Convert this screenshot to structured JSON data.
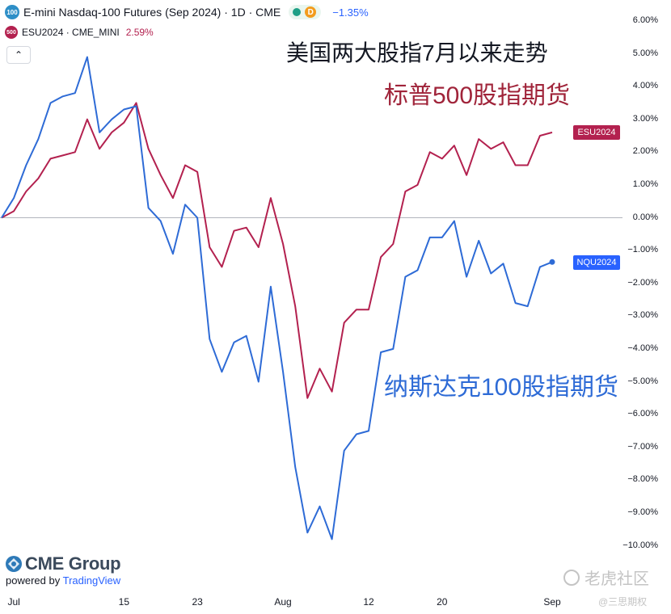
{
  "legend": {
    "nq_symbol_badge": "100",
    "nq_title": "E-mini Nasdaq-100 Futures (Sep 2024) · 1D · CME",
    "d_letter": "D",
    "nq_change": "−1.35%",
    "es_symbol_badge": "500",
    "es_title": "ESU2024 · CME_MINI",
    "es_change": "2.59%",
    "collapse_glyph": "⌃"
  },
  "annotations": {
    "headline": "美国两大股指7月以来走势",
    "es_label": "标普500股指期货",
    "nq_label": "纳斯达克100股指期货"
  },
  "price_tags": {
    "es": "ESU2024",
    "nq": "NQU2024"
  },
  "branding": {
    "cme_logo_text": "CME Group",
    "powered_by": "powered by",
    "tradingview": "TradingView",
    "watermark": "老虎社区",
    "watermark_sub": "@三思期权"
  },
  "colors": {
    "es_line": "#b3214f",
    "nq_line": "#2e6bd6",
    "zero_line": "#b2b5be"
  },
  "chart_data": {
    "type": "line",
    "ylabel_format": "percent",
    "ylim": [
      -10.5,
      6.5
    ],
    "y_ticks": [
      "6.00%",
      "5.00%",
      "4.00%",
      "3.00%",
      "2.00%",
      "1.00%",
      "0.00%",
      "−1.00%",
      "−2.00%",
      "−3.00%",
      "−4.00%",
      "−5.00%",
      "−6.00%",
      "−7.00%",
      "−8.00%",
      "−9.00%",
      "−10.00%"
    ],
    "x_ticks": [
      {
        "label": "Jul",
        "index": 1
      },
      {
        "label": "15",
        "index": 10
      },
      {
        "label": "23",
        "index": 16
      },
      {
        "label": "Aug",
        "index": 23
      },
      {
        "label": "12",
        "index": 30
      },
      {
        "label": "20",
        "index": 36
      },
      {
        "label": "Sep",
        "index": 45
      }
    ],
    "series": [
      {
        "name": "ESU2024",
        "values": [
          0.0,
          0.2,
          0.8,
          1.2,
          1.8,
          1.9,
          2.0,
          3.0,
          2.1,
          2.6,
          2.9,
          3.5,
          2.1,
          1.3,
          0.6,
          1.6,
          1.4,
          -0.9,
          -1.5,
          -0.4,
          -0.3,
          -0.9,
          0.6,
          -0.8,
          -2.7,
          -5.5,
          -4.6,
          -5.3,
          -3.2,
          -2.8,
          -2.8,
          -1.2,
          -0.8,
          0.8,
          1.0,
          2.0,
          1.8,
          2.2,
          1.3,
          2.4,
          2.1,
          2.3,
          1.6,
          1.6,
          2.5,
          2.6
        ]
      },
      {
        "name": "NQU2024",
        "values": [
          0.0,
          0.6,
          1.6,
          2.4,
          3.5,
          3.7,
          3.8,
          4.9,
          2.6,
          3.0,
          3.3,
          3.4,
          0.3,
          -0.1,
          -1.1,
          0.4,
          0.0,
          -3.7,
          -4.7,
          -3.8,
          -3.6,
          -5.0,
          -2.1,
          -4.7,
          -7.6,
          -9.6,
          -8.8,
          -9.8,
          -7.1,
          -6.6,
          -6.5,
          -4.1,
          -4.0,
          -1.8,
          -1.6,
          -0.6,
          -0.6,
          -0.1,
          -1.8,
          -0.7,
          -1.7,
          -1.4,
          -2.6,
          -2.7,
          -1.5,
          -1.35
        ]
      }
    ]
  }
}
